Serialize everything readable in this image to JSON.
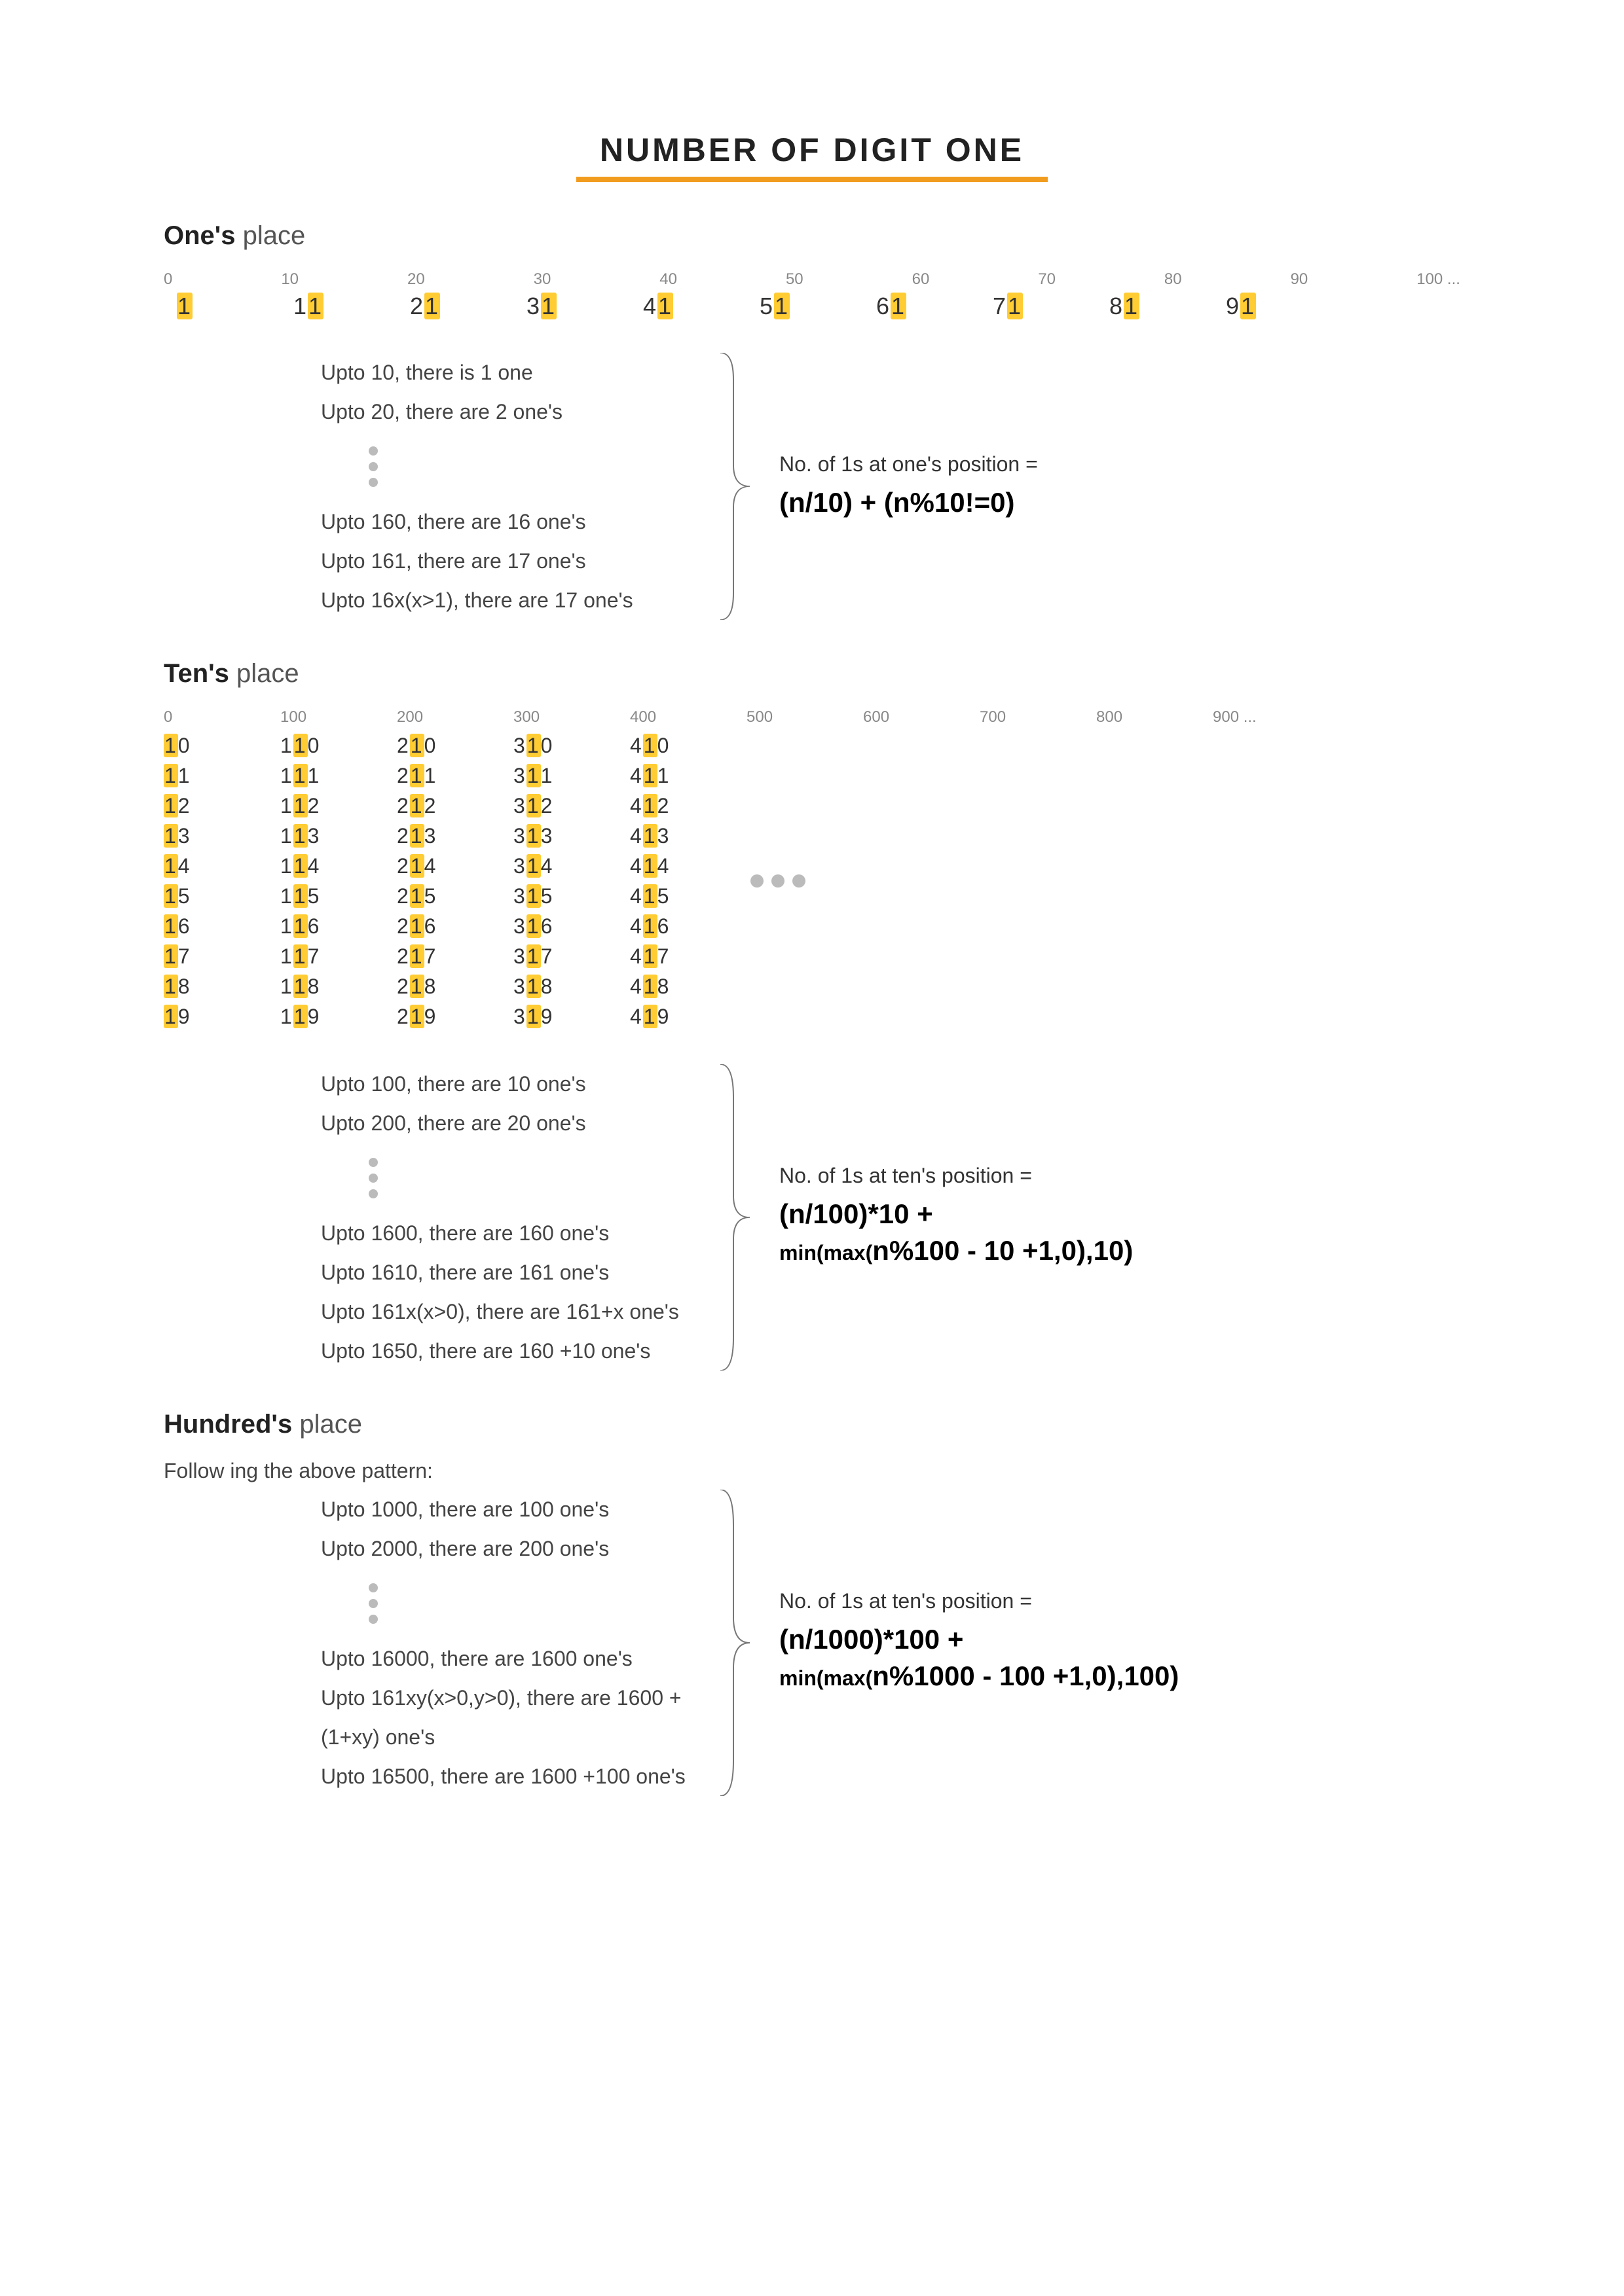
{
  "title": "NUMBER OF DIGIT ONE",
  "colors": {
    "accent": "#f29c1f",
    "highlight": "#ffcc33",
    "text": "#333333",
    "muted": "#888888",
    "dot": "#bbbbbb"
  },
  "ones": {
    "heading_bold": "One's",
    "heading_rest": " place",
    "axis": [
      "0",
      "10",
      "20",
      "30",
      "40",
      "50",
      "60",
      "70",
      "80",
      "90",
      "100 ..."
    ],
    "numbers": [
      "1",
      "11",
      "21",
      "31",
      "41",
      "51",
      "61",
      "71",
      "81",
      "91"
    ],
    "explain": [
      "Upto 10, there is 1 one",
      "Upto 20, there are 2 one's",
      "__DOTS__",
      "Upto 160, there are 16 one's",
      "Upto 161, there are 17 one's",
      "Upto 16x(x>1), there are 17 one's"
    ],
    "formula_label": "No. of 1s at one's position =",
    "formula": "(n/10) + (n%10!=0)"
  },
  "tens": {
    "heading_bold": "Ten's",
    "heading_rest": " place",
    "col_headers": [
      "0",
      "100",
      "200",
      "300",
      "400",
      "500",
      "600",
      "700",
      "800",
      "900 ..."
    ],
    "columns": [
      [
        "10",
        "11",
        "12",
        "13",
        "14",
        "15",
        "16",
        "17",
        "18",
        "19"
      ],
      [
        "110",
        "111",
        "112",
        "113",
        "114",
        "115",
        "116",
        "117",
        "118",
        "119"
      ],
      [
        "210",
        "211",
        "212",
        "213",
        "214",
        "215",
        "216",
        "217",
        "218",
        "219"
      ],
      [
        "310",
        "311",
        "312",
        "313",
        "314",
        "315",
        "316",
        "317",
        "318",
        "319"
      ],
      [
        "410",
        "411",
        "412",
        "413",
        "414",
        "415",
        "416",
        "417",
        "418",
        "419"
      ]
    ],
    "highlight_index_for_col": [
      0,
      1,
      1,
      1,
      1
    ],
    "explain": [
      "Upto 100, there are 10 one's",
      "Upto 200, there are 20 one's",
      "__DOTS__",
      "Upto 1600, there are 160 one's",
      "Upto 1610, there are 161 one's",
      "Upto 161x(x>0), there are 161+x one's",
      "Upto 1650, there are 160 +10 one's"
    ],
    "formula_label": "No. of 1s at ten's position =",
    "formula_l1": "(n/100)*10 +",
    "formula_l2a": "min(max(",
    "formula_l2b": "n%100 - 10 +1,0),10)"
  },
  "hundreds": {
    "heading_bold": "Hundred's",
    "heading_rest": " place",
    "preface": "Follow ing the above pattern:",
    "explain": [
      "Upto 1000, there are 100 one's",
      "Upto 2000, there are 200 one's",
      "__DOTS__",
      "Upto 16000, there are 1600 one's",
      "Upto 161xy(x>0,y>0), there are 1600 + (1+xy) one's",
      "Upto 16500, there are 1600 +100 one's"
    ],
    "formula_label": "No. of 1s at ten's position =",
    "formula_l1": "(n/1000)*100 +",
    "formula_l2a": "min(max(",
    "formula_l2b": "n%1000 - 100 +1,0),100)"
  }
}
